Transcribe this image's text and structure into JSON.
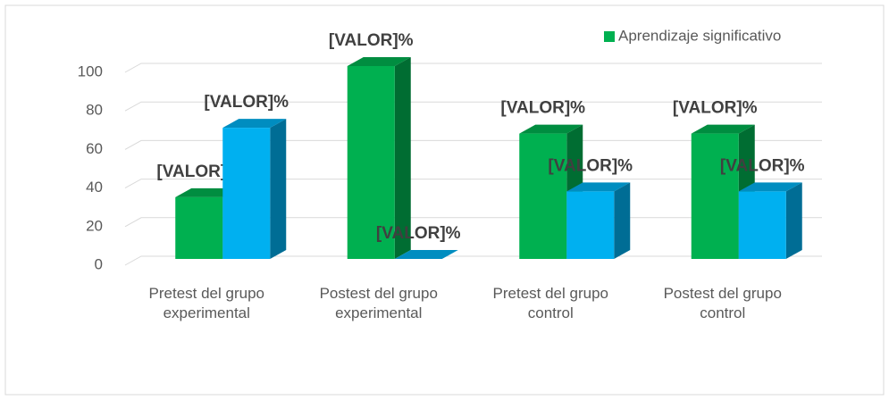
{
  "chart_data": {
    "type": "bar3d",
    "categories": [
      "Pretest del grupo experimental",
      "Postest del grupo experimental",
      "Pretest del grupo control",
      "Postest del grupo control"
    ],
    "series": [
      {
        "name": "Aprendizaje significativo",
        "color": "#00b050",
        "values": [
          32,
          100,
          65,
          65
        ],
        "value_labels": [
          "[VALOR]%",
          "[VALOR]%",
          "[VALOR]%",
          "[VALOR]%"
        ]
      },
      {
        "color": "#00b0f0",
        "values": [
          68,
          0,
          35,
          35
        ],
        "value_labels": [
          "[VALOR]%",
          "[VALOR]%",
          "[VALOR]%",
          "[VALOR]%"
        ]
      }
    ],
    "ylim": [
      0,
      100
    ],
    "yticks": [
      0,
      20,
      40,
      60,
      80,
      100
    ],
    "grid": true,
    "legend": "top-right"
  }
}
